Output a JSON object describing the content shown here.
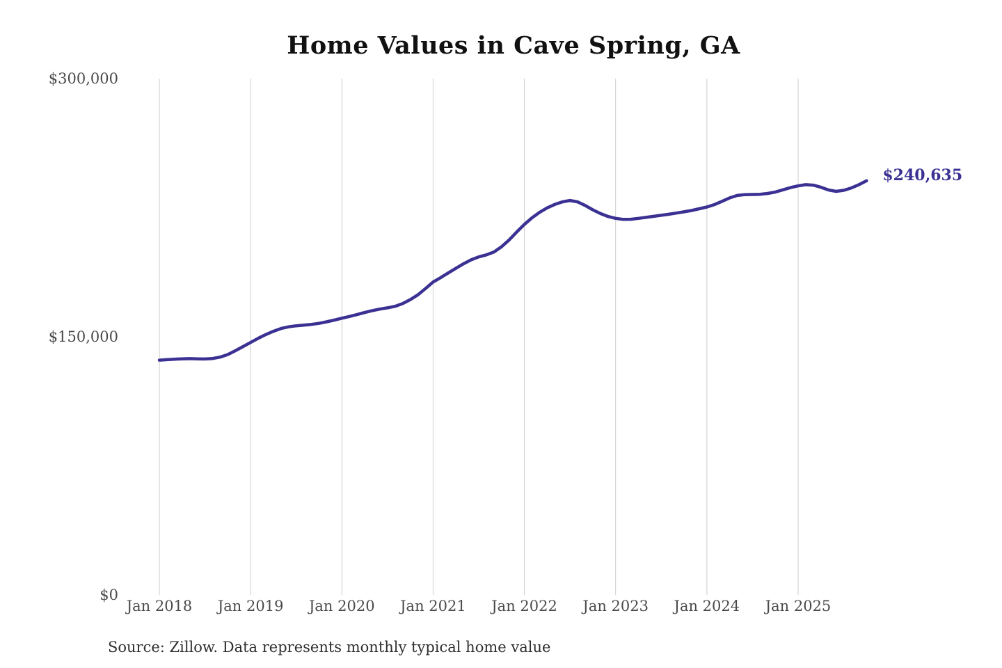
{
  "title": "Home Values in Cave Spring, GA",
  "source": "Source: Zillow. Data represents monthly typical home value",
  "annotation": {
    "label": "$240,635",
    "value": 240635,
    "color": "#3a3193"
  },
  "colors": {
    "line": "#3a3193",
    "gridline": "#cccccc",
    "axis_text": "#4a4a4a",
    "title_text": "#111111",
    "source_text": "#2e2e2e",
    "background": "#ffffff"
  },
  "y_axis": {
    "ticks": [
      {
        "label": "$0",
        "value": 0
      },
      {
        "label": "$150,000",
        "value": 150000
      },
      {
        "label": "$300,000",
        "value": 300000
      }
    ]
  },
  "x_axis": {
    "ticks": [
      {
        "label": "Jan 2018",
        "month_index": 0
      },
      {
        "label": "Jan 2019",
        "month_index": 12
      },
      {
        "label": "Jan 2020",
        "month_index": 24
      },
      {
        "label": "Jan 2021",
        "month_index": 36
      },
      {
        "label": "Jan 2022",
        "month_index": 48
      },
      {
        "label": "Jan 2023",
        "month_index": 60
      },
      {
        "label": "Jan 2024",
        "month_index": 72
      },
      {
        "label": "Jan 2025",
        "month_index": 84
      }
    ]
  },
  "chart_data": {
    "type": "line",
    "title": "Home Values in Cave Spring, GA",
    "xlabel": "",
    "ylabel": "",
    "ylim": [
      0,
      300000
    ],
    "grid": "vertical yearly gridlines only",
    "legend": false,
    "interval": "monthly",
    "x_start": "2018-01",
    "x_end": "2025-10",
    "latest_value": 240635,
    "series": [
      {
        "name": "Typical home value",
        "values": [
          136400,
          136700,
          137000,
          137200,
          137300,
          137200,
          137100,
          137400,
          138200,
          139700,
          141900,
          144300,
          146700,
          149100,
          151300,
          153200,
          154800,
          155800,
          156400,
          156800,
          157200,
          157800,
          158700,
          159700,
          160800,
          161800,
          162900,
          164100,
          165200,
          166100,
          166800,
          167700,
          169300,
          171600,
          174400,
          178000,
          181800,
          184400,
          187100,
          189800,
          192400,
          194700,
          196400,
          197600,
          199300,
          202300,
          206300,
          210900,
          215300,
          219100,
          222300,
          224900,
          226900,
          228400,
          229200,
          228400,
          226300,
          223800,
          221600,
          219900,
          218800,
          218200,
          218300,
          218800,
          219400,
          220000,
          220600,
          221200,
          221900,
          222600,
          223400,
          224400,
          225400,
          226800,
          228700,
          230700,
          232100,
          232600,
          232700,
          232800,
          233300,
          234100,
          235400,
          236700,
          237700,
          238400,
          238100,
          236900,
          235300,
          234500,
          235100,
          236500,
          238400,
          240635
        ]
      }
    ]
  }
}
